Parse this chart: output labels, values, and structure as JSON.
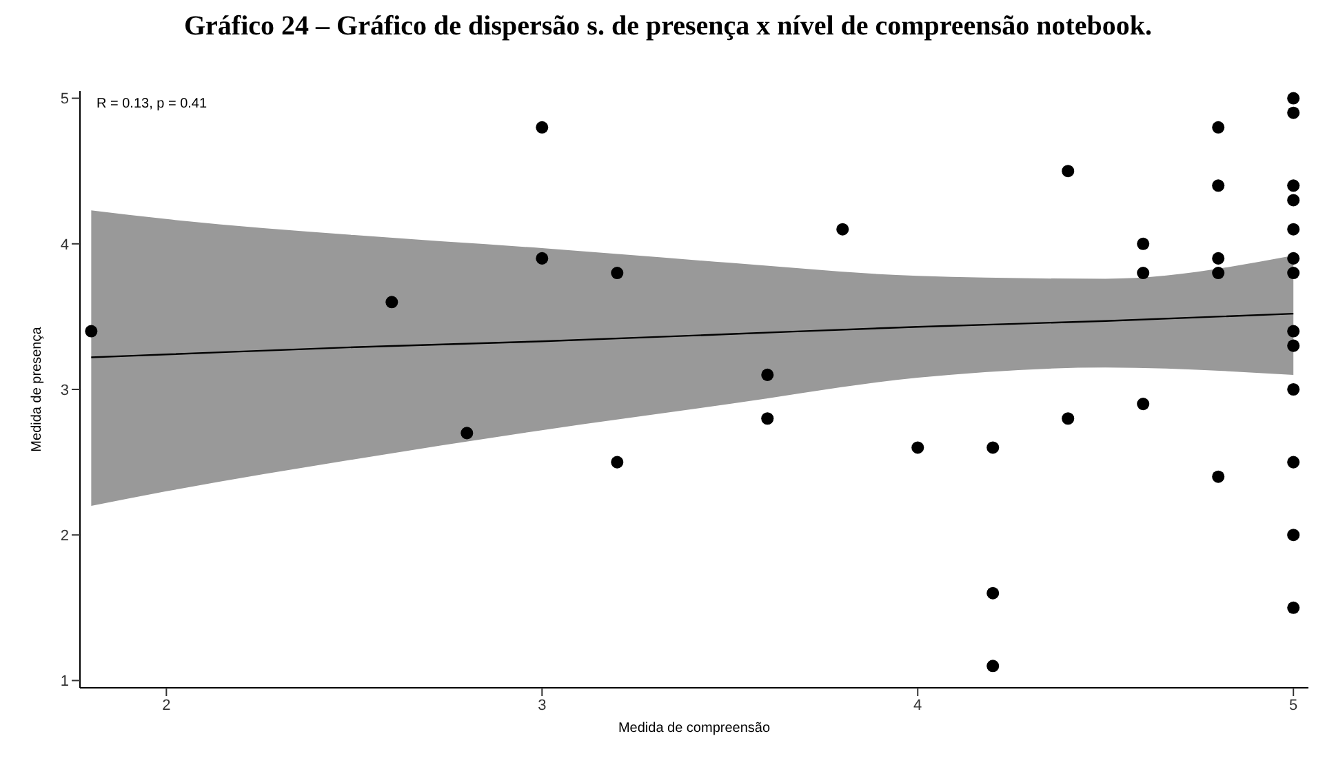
{
  "chart_data": {
    "type": "scatter",
    "title": "Gráfico 24 – Gráfico de dispersão s. de presença x nível de compreensão notebook.",
    "xlabel": "Medida de compreensão",
    "ylabel": "Medida de presença",
    "annotations": [
      "R = 0.13, p = 0.41"
    ],
    "xlim": [
      1.77,
      5.04
    ],
    "ylim": [
      0.95,
      5.05
    ],
    "xticks": [
      2,
      3,
      4,
      5
    ],
    "yticks": [
      1,
      2,
      3,
      4,
      5
    ],
    "marker": "circle",
    "series": [
      {
        "type": "line",
        "marker": "none",
        "color": "#000000",
        "x": [
          1.8,
          2,
          2.5,
          3,
          3.5,
          4,
          4.5,
          5
        ],
        "values": [
          3.22,
          3.24,
          3.29,
          3.33,
          3.38,
          3.43,
          3.47,
          3.52
        ],
        "lower": [
          2.2,
          2.3,
          2.52,
          2.72,
          2.9,
          3.08,
          3.15,
          3.1
        ],
        "upper": [
          4.23,
          4.17,
          4.06,
          3.97,
          3.87,
          3.78,
          3.76,
          3.92
        ]
      },
      {
        "color": "#000000",
        "x": [
          1.8,
          2.6,
          2.8,
          3.0,
          3.0,
          3.2,
          3.2,
          3.6,
          3.6,
          3.8,
          4.0,
          4.2,
          4.2,
          4.2,
          4.4,
          4.4,
          4.6,
          4.6,
          4.6,
          4.8,
          4.8,
          4.8,
          4.8,
          4.8,
          5,
          5,
          5,
          5,
          5,
          5,
          5,
          5,
          5,
          5,
          5,
          5,
          5
        ],
        "values": [
          3.4,
          3.6,
          2.7,
          4.8,
          3.9,
          3.8,
          2.5,
          3.1,
          2.8,
          4.1,
          2.6,
          2.6,
          1.6,
          1.1,
          4.5,
          2.8,
          4.0,
          3.8,
          2.9,
          4.8,
          4.4,
          3.9,
          3.8,
          2.4,
          5.0,
          4.9,
          4.4,
          4.3,
          4.1,
          3.9,
          3.8,
          3.4,
          3.3,
          3.0,
          2.5,
          2.0,
          1.5
        ]
      }
    ]
  }
}
